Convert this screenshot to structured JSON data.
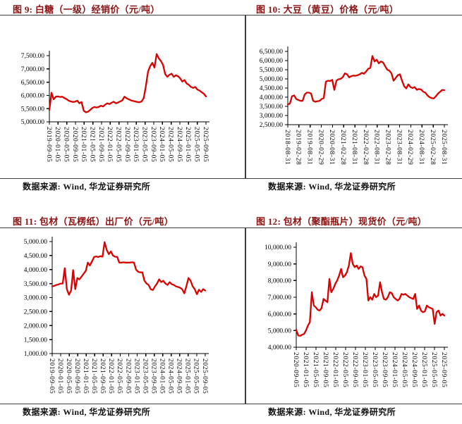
{
  "report": {
    "source_note": "数据来源: Wind, 华龙证券研究所"
  },
  "colors": {
    "background": "#ffffff",
    "series_line": "#d90000",
    "figure_title": "#8b1212",
    "rule": "#3c3c3c",
    "axis": "#000000",
    "text": "#111111"
  },
  "chart_data": [
    {
      "type": "line",
      "id": "fig9",
      "title": "图 9: 白糖（一级）经销价（元/吨）",
      "source": "数据来源: Wind, 华龙证券研究所",
      "series_name": "白糖（一级）经销价",
      "line_color": "#d90000",
      "ylim": [
        5000,
        7500
      ],
      "yticklabels": [
        "7,500.00",
        "7,000.00",
        "6,500.00",
        "6,000.00",
        "5,500.00",
        "5,000.00"
      ],
      "xticklabels": [
        "2019-09-05",
        "2020-01-05",
        "2020-05-05",
        "2020-09-05",
        "2021-01-05",
        "2021-05-05",
        "2021-09-05",
        "2022-01-05",
        "2022-05-05",
        "2022-09-05",
        "2023-01-05",
        "2023-05-05",
        "2023-09-05",
        "2024-01-05",
        "2024-05-05",
        "2024-09-05",
        "2025-01-05",
        "2025-05-05",
        "2025-09-05"
      ],
      "grid": false,
      "legend": "none",
      "values": [
        5450,
        6100,
        5850,
        5950,
        5960,
        5940,
        5950,
        5900,
        5860,
        5800,
        5770,
        5750,
        5760,
        5800,
        5700,
        5750,
        5420,
        5360,
        5380,
        5450,
        5520,
        5560,
        5540,
        5560,
        5610,
        5580,
        5650,
        5700,
        5670,
        5720,
        5760,
        5700,
        5730,
        5770,
        5810,
        5950,
        5890,
        5850,
        5810,
        5790,
        5770,
        5750,
        5740,
        5770,
        5900,
        6350,
        6900,
        7100,
        7230,
        7050,
        7560,
        7400,
        7300,
        7150,
        6800,
        6700,
        6780,
        6820,
        6700,
        6760,
        6720,
        6640,
        6520,
        6580,
        6450,
        6400,
        6320,
        6280,
        6320,
        6220,
        6180,
        6120,
        6060,
        5960
      ]
    },
    {
      "type": "line",
      "id": "fig10",
      "title": "图 10: 大豆（黄豆）价格（元/吨）",
      "source": "数据来源: Wind, 华龙证券研究所",
      "series_name": "大豆（黄豆）价格",
      "line_color": "#d90000",
      "ylim": [
        2500,
        6500
      ],
      "yticklabels": [
        "6,500.00",
        "6,000.00",
        "5,500.00",
        "5,000.00",
        "4,500.00",
        "4,000.00",
        "3,500.00",
        "3,000.00",
        "2,500.00"
      ],
      "xticklabels": [
        "2018-08-31",
        "2019-02-28",
        "2019-08-31",
        "2020-02-29",
        "2020-08-31",
        "2021-02-28",
        "2021-08-31",
        "2022-02-28",
        "2022-08-31",
        "2023-02-28",
        "2023-08-31",
        "2024-02-29",
        "2024-08-31",
        "2025-02-28",
        "2025-08-31"
      ],
      "grid": false,
      "legend": "none",
      "values": [
        3600,
        3650,
        4050,
        4100,
        3900,
        3850,
        3800,
        3800,
        4150,
        4250,
        4250,
        4200,
        3800,
        3750,
        3780,
        3800,
        3900,
        3950,
        4850,
        4900,
        4880,
        4950,
        4400,
        4900,
        4980,
        5000,
        5100,
        5300,
        5250,
        5080,
        5150,
        5180,
        5170,
        5200,
        5250,
        5330,
        5280,
        5400,
        5550,
        5600,
        6250,
        5950,
        6050,
        5850,
        5950,
        5900,
        5700,
        5500,
        5450,
        5300,
        4900,
        5050,
        5200,
        5250,
        4900,
        4600,
        4480,
        4700,
        4550,
        4500,
        4550,
        4400,
        4450,
        4420,
        4300,
        4250,
        4100,
        4000,
        3950,
        3930,
        4050,
        4200,
        4300,
        4400,
        4380
      ]
    },
    {
      "type": "line",
      "id": "fig11",
      "title": "图 11: 包材（瓦楞纸）出厂价（元/吨）",
      "source": "数据来源: Wind, 华龙证券研究所",
      "series_name": "包材（瓦楞纸）出厂价",
      "line_color": "#d90000",
      "ylim": [
        1000,
        5000
      ],
      "yticklabels": [
        "5,000.00",
        "4,500.00",
        "4,000.00",
        "3,500.00",
        "3,000.00",
        "2,500.00",
        "2,000.00",
        "1,500.00",
        "1,000.00"
      ],
      "xticklabels": [
        "2019-09-05",
        "2020-01-05",
        "2020-05-05",
        "2020-09-05",
        "2021-01-05",
        "2021-05-05",
        "2021-09-05",
        "2022-01-05",
        "2022-05-05",
        "2022-09-05",
        "2023-01-05",
        "2023-05-05",
        "2023-09-05",
        "2024-01-05",
        "2024-05-05",
        "2024-09-05",
        "2025-01-05",
        "2025-05-05",
        "2025-09-05"
      ],
      "grid": false,
      "legend": "none",
      "values": [
        3400,
        3420,
        3450,
        3470,
        3500,
        3500,
        4050,
        3300,
        3100,
        3250,
        3980,
        3300,
        3700,
        3650,
        3750,
        3850,
        3950,
        4250,
        4150,
        4300,
        4450,
        4470,
        4450,
        4480,
        4460,
        4980,
        4700,
        4550,
        4650,
        4500,
        4460,
        4450,
        4250,
        4250,
        4260,
        4250,
        4250,
        4250,
        4260,
        4250,
        4000,
        3920,
        3900,
        3900,
        3600,
        3500,
        3450,
        3300,
        3270,
        3400,
        3500,
        3650,
        3550,
        3600,
        3500,
        3450,
        3550,
        3480,
        3450,
        3400,
        3380,
        3350,
        3300,
        3150,
        3400,
        3700,
        3600,
        3400,
        3300,
        3120,
        3280,
        3200,
        3300,
        3250
      ]
    },
    {
      "type": "line",
      "id": "fig12",
      "title": "图 12: 包材（聚酯瓶片）现货价（元/吨）",
      "source": "数据来源: Wind, 华龙证券研究所",
      "series_name": "包材（聚酯瓶片）现货价",
      "line_color": "#d90000",
      "ylim": [
        4000,
        10000
      ],
      "yticklabels": [
        "10,000.00",
        "9,000.00",
        "8,000.00",
        "7,000.00",
        "6,000.00",
        "5,000.00",
        "4,000.00"
      ],
      "xticklabels": [
        "2020-09-05",
        "2021-01-05",
        "2021-05-05",
        "2021-09-05",
        "2022-01-05",
        "2022-05-05",
        "2022-09-05",
        "2023-01-05",
        "2023-05-05",
        "2023-09-05",
        "2024-01-05",
        "2024-05-05",
        "2024-09-05",
        "2025-01-05",
        "2025-05-05",
        "2025-09-05"
      ],
      "grid": false,
      "legend": "none",
      "values": [
        5050,
        4700,
        4680,
        4750,
        4800,
        5000,
        5300,
        5500,
        7300,
        6500,
        6400,
        6250,
        6200,
        6350,
        6900,
        6800,
        6700,
        8100,
        7300,
        7500,
        7800,
        8000,
        8300,
        8700,
        8200,
        8300,
        8500,
        8900,
        9650,
        9000,
        8800,
        8900,
        8700,
        8850,
        8800,
        8300,
        8100,
        6800,
        7000,
        6850,
        7200,
        7000,
        7100,
        7900,
        7300,
        6900,
        6850,
        7000,
        7300,
        7250,
        7000,
        6900,
        6800,
        6900,
        7200,
        7150,
        7200,
        7100,
        7000,
        6950,
        6900,
        7200,
        6300,
        6500,
        6200,
        6100,
        6150,
        6500,
        6400,
        6350,
        6300,
        5400,
        6100,
        6200,
        5900,
        6000,
        5900
      ]
    }
  ]
}
